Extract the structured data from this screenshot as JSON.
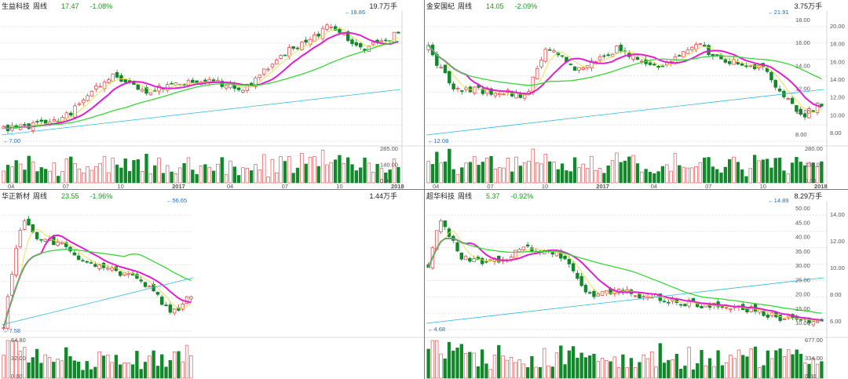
{
  "panels": [
    {
      "name": "生益科技",
      "period": "周线",
      "price": "17.47",
      "change": "-1.08%",
      "volume": "19.7万手",
      "high_label": "18.86",
      "low_label": "7.00",
      "price_ticks": [],
      "vol_ticks": [
        "285.00",
        "140.00",
        "0.00"
      ],
      "x_ticks": [
        "04",
        "07",
        "10",
        "2017",
        "04",
        "07",
        "10",
        "2018"
      ]
    },
    {
      "name": "金安国纪",
      "period": "周线",
      "price": "14.05",
      "change": "-2.09%",
      "volume": "3.75万手",
      "high_label": "21.91",
      "low_label": "12.08",
      "price_ticks": [
        "20.00",
        "18.00",
        "16.00",
        "14.00",
        "12.00",
        "10.00",
        "8.00"
      ],
      "left_ticks": [
        "18.00",
        "16.00",
        "14.00",
        "12.00",
        "10.00",
        "8.00"
      ],
      "vol_ticks": [
        "280.00",
        "138.00",
        "0.00"
      ],
      "x_ticks": [
        "04",
        "07",
        "10",
        "2017",
        "04",
        "07",
        "10",
        "2018"
      ]
    },
    {
      "name": "华正新材",
      "period": "周线",
      "price": "23.55",
      "change": "-1.96%",
      "volume": "1.44万手",
      "high_label": "56.65",
      "low_label": "7.58",
      "price_ticks": [],
      "vol_ticks": [
        "64.80",
        "32.00",
        "0.00"
      ],
      "x_ticks": []
    },
    {
      "name": "超华科技",
      "period": "周线",
      "price": "5.37",
      "change": "-0.92%",
      "volume": "8.29万手",
      "high_label": "14.89",
      "low_label": "4.68",
      "price_ticks": [
        "14.00",
        "12.00",
        "10.00",
        "8.00",
        "6.00"
      ],
      "left_ticks": [
        "50.00",
        "45.00",
        "40.00",
        "35.00",
        "30.00",
        "25.00",
        "20.00",
        "15.00",
        "10.00"
      ],
      "vol_ticks": [
        "677.00",
        "334.00",
        "0.00"
      ],
      "x_ticks": []
    }
  ],
  "colors": {
    "up": "#e23b3b",
    "down": "#11882a",
    "ma_magenta": "#e020d0",
    "ma_green": "#3ad63a",
    "ma_yellow": "#e8e040",
    "ma_cyan": "#2fb8e0",
    "grid": "#cfcfcf"
  }
}
